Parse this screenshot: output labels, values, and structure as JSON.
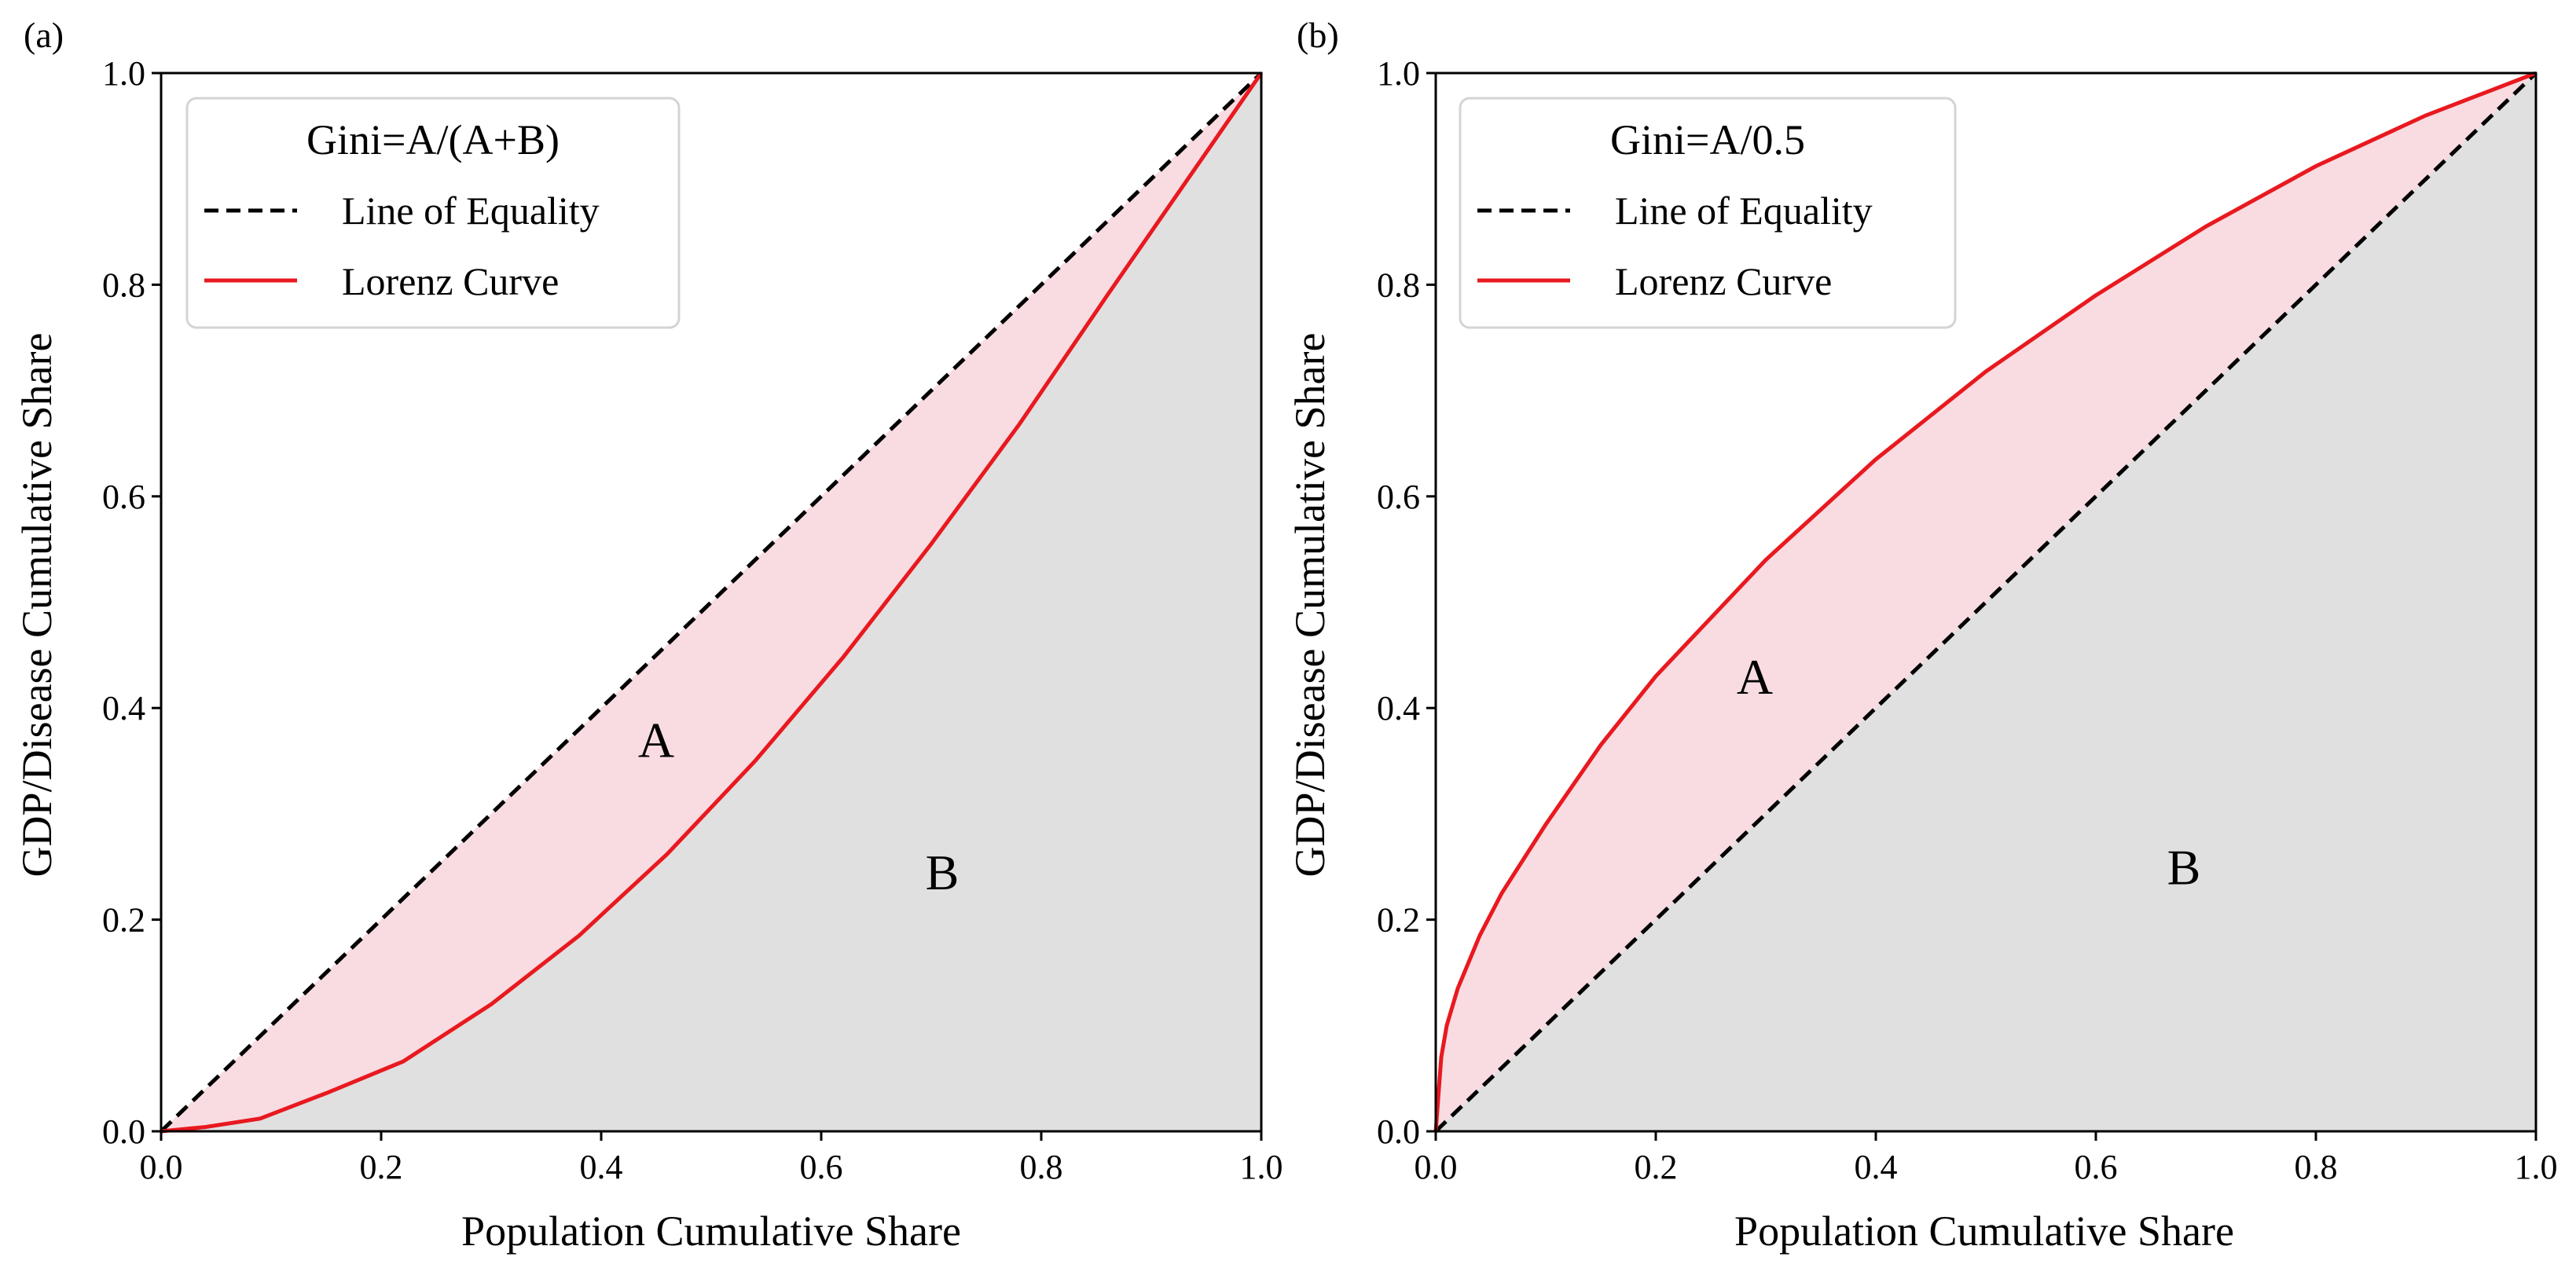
{
  "chart_data": [
    {
      "panel_label": "(a)",
      "type": "line",
      "xlabel": "Population Cumulative Share",
      "ylabel": "GDP/Disease Cumulative Share",
      "xlim": [
        0.0,
        1.0
      ],
      "ylim": [
        0.0,
        1.0
      ],
      "xticks": [
        "0.0",
        "0.2",
        "0.4",
        "0.6",
        "0.8",
        "1.0"
      ],
      "yticks": [
        "0.0",
        "0.2",
        "0.4",
        "0.6",
        "0.8",
        "1.0"
      ],
      "grid": false,
      "legend": {
        "title": "Gini=A/(A+B)",
        "location": "upper-left",
        "entries": [
          "Line of Equality",
          "Lorenz Curve"
        ]
      },
      "series": [
        {
          "name": "Line of Equality",
          "style": "dashed",
          "color": "#000000",
          "x": [
            0.0,
            1.0
          ],
          "y": [
            0.0,
            1.0
          ]
        },
        {
          "name": "Lorenz Curve",
          "style": "solid",
          "color": "#e8191f",
          "x": [
            0.0,
            0.04,
            0.09,
            0.15,
            0.22,
            0.3,
            0.38,
            0.46,
            0.54,
            0.62,
            0.7,
            0.78,
            0.86,
            0.93,
            0.97,
            1.0
          ],
          "y": [
            0.0,
            0.004,
            0.012,
            0.036,
            0.066,
            0.12,
            0.185,
            0.262,
            0.35,
            0.448,
            0.555,
            0.668,
            0.79,
            0.895,
            0.955,
            1.0
          ]
        }
      ],
      "annotations": [
        {
          "text": "A",
          "x": 0.45,
          "y": 0.37
        },
        {
          "text": "B",
          "x": 0.71,
          "y": 0.245
        }
      ],
      "fills": {
        "A": "#f8dce1",
        "B": "#e0e0e0"
      }
    },
    {
      "panel_label": "(b)",
      "type": "line",
      "xlabel": "Population Cumulative Share",
      "ylabel": "GDP/Disease Cumulative Share",
      "xlim": [
        0.0,
        1.0
      ],
      "ylim": [
        0.0,
        1.0
      ],
      "xticks": [
        "0.0",
        "0.2",
        "0.4",
        "0.6",
        "0.8",
        "1.0"
      ],
      "yticks": [
        "0.0",
        "0.2",
        "0.4",
        "0.6",
        "0.8",
        "1.0"
      ],
      "grid": false,
      "legend": {
        "title": "Gini=A/0.5",
        "location": "upper-left",
        "entries": [
          "Line of Equality",
          "Lorenz Curve"
        ]
      },
      "series": [
        {
          "name": "Line of Equality",
          "style": "dashed",
          "color": "#000000",
          "x": [
            0.0,
            1.0
          ],
          "y": [
            0.0,
            1.0
          ]
        },
        {
          "name": "Lorenz Curve",
          "style": "solid",
          "color": "#e8191f",
          "x": [
            0.0,
            0.005,
            0.01,
            0.02,
            0.04,
            0.06,
            0.1,
            0.15,
            0.2,
            0.3,
            0.4,
            0.5,
            0.6,
            0.7,
            0.8,
            0.9,
            1.0
          ],
          "y": [
            0.0,
            0.07,
            0.1,
            0.135,
            0.185,
            0.225,
            0.29,
            0.365,
            0.43,
            0.54,
            0.635,
            0.718,
            0.79,
            0.855,
            0.912,
            0.96,
            1.0
          ]
        }
      ],
      "annotations": [
        {
          "text": "A",
          "x": 0.29,
          "y": 0.43
        },
        {
          "text": "B",
          "x": 0.68,
          "y": 0.25
        }
      ],
      "fills": {
        "A": "#f8dce1",
        "B": "#e0e0e0"
      }
    }
  ]
}
